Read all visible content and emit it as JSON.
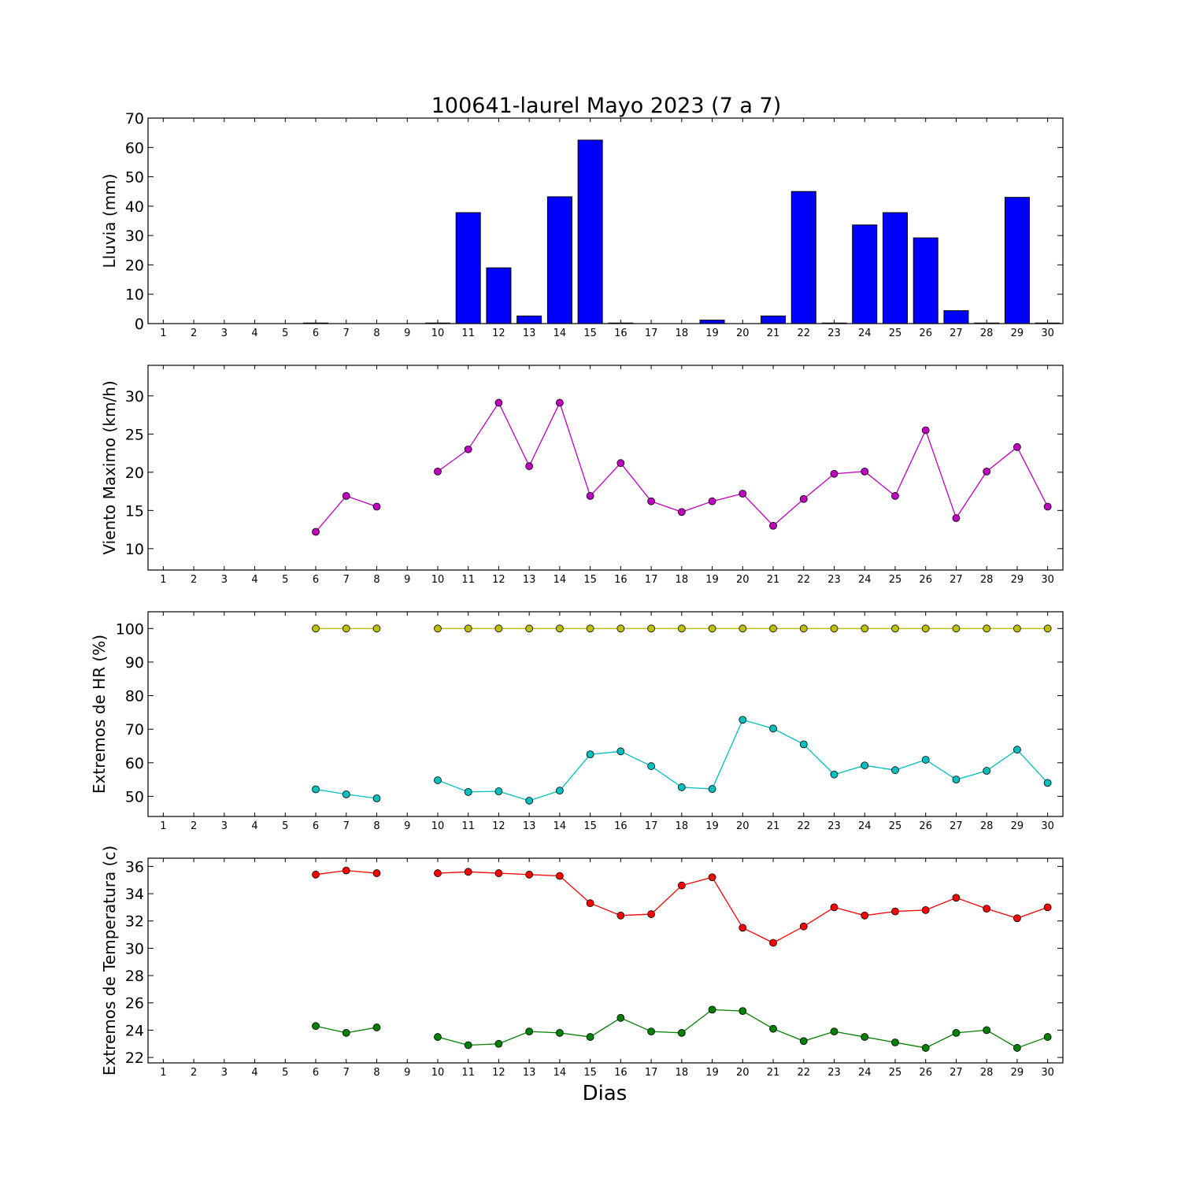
{
  "title": "100641-laurel Mayo 2023  (7 a 7)",
  "xlabel": "Dias",
  "colors": {
    "lluvia": "#0000ff",
    "viento": "#bf00bf",
    "hr_max": "#bfbf00",
    "hr_min": "#00bfbf",
    "temp_max": "#ff0000",
    "temp_min": "#007f00"
  },
  "chart_data": [
    {
      "type": "bar",
      "ylabel": "Lluvia (mm)",
      "ylim": [
        0,
        70
      ],
      "yticks": [
        0,
        10,
        20,
        30,
        40,
        50,
        60,
        70
      ],
      "categories": [
        1,
        2,
        3,
        4,
        5,
        6,
        7,
        8,
        9,
        10,
        11,
        12,
        13,
        14,
        15,
        16,
        17,
        18,
        19,
        20,
        21,
        22,
        23,
        24,
        25,
        26,
        27,
        28,
        29,
        30
      ],
      "values": [
        0,
        0,
        0,
        0,
        0,
        0.2,
        0,
        0,
        0,
        0.2,
        37.8,
        19,
        2.6,
        43.2,
        62.5,
        0.2,
        0,
        0,
        1.2,
        0,
        2.6,
        45,
        0.2,
        33.6,
        37.8,
        29.2,
        4.4,
        0.2,
        43,
        0.2
      ]
    },
    {
      "type": "line",
      "ylabel": "Viento Maximo (km/h)",
      "ylim": [
        7.2,
        34
      ],
      "yticks": [
        10,
        15,
        20,
        25,
        30
      ],
      "categories": [
        1,
        2,
        3,
        4,
        5,
        6,
        7,
        8,
        9,
        10,
        11,
        12,
        13,
        14,
        15,
        16,
        17,
        18,
        19,
        20,
        21,
        22,
        23,
        24,
        25,
        26,
        27,
        28,
        29,
        30
      ],
      "series": [
        {
          "values": [
            null,
            null,
            null,
            null,
            null,
            12.2,
            16.9,
            15.5,
            null,
            20.1,
            23,
            29.1,
            20.8,
            29.1,
            16.9,
            21.2,
            16.2,
            14.8,
            16.2,
            17.2,
            13,
            16.5,
            19.8,
            20.1,
            16.9,
            25.5,
            14,
            20.1,
            23.3,
            15.5
          ]
        }
      ]
    },
    {
      "type": "line",
      "ylabel": "Extremos de HR (%)",
      "ylim": [
        44,
        105
      ],
      "yticks": [
        50,
        60,
        70,
        80,
        90,
        100
      ],
      "categories": [
        1,
        2,
        3,
        4,
        5,
        6,
        7,
        8,
        9,
        10,
        11,
        12,
        13,
        14,
        15,
        16,
        17,
        18,
        19,
        20,
        21,
        22,
        23,
        24,
        25,
        26,
        27,
        28,
        29,
        30
      ],
      "series": [
        {
          "values": [
            null,
            null,
            null,
            null,
            null,
            100,
            100,
            100,
            null,
            100,
            100,
            100,
            100,
            100,
            100,
            100,
            100,
            100,
            100,
            100,
            100,
            100,
            100,
            100,
            100,
            100,
            100,
            100,
            100,
            100
          ]
        },
        {
          "values": [
            null,
            null,
            null,
            null,
            null,
            52.1,
            50.6,
            49.4,
            null,
            54.8,
            51.3,
            51.5,
            48.7,
            51.7,
            62.5,
            63.4,
            59,
            52.7,
            52.2,
            72.8,
            70.2,
            65.5,
            56.5,
            59.2,
            57.8,
            60.9,
            55,
            57.6,
            63.9,
            54
          ]
        }
      ]
    },
    {
      "type": "line",
      "ylabel": "Extremos de Temperatura (c)",
      "ylim": [
        21.6,
        36.6
      ],
      "yticks": [
        22,
        24,
        26,
        28,
        30,
        32,
        34,
        36
      ],
      "categories": [
        1,
        2,
        3,
        4,
        5,
        6,
        7,
        8,
        9,
        10,
        11,
        12,
        13,
        14,
        15,
        16,
        17,
        18,
        19,
        20,
        21,
        22,
        23,
        24,
        25,
        26,
        27,
        28,
        29,
        30
      ],
      "series": [
        {
          "values": [
            null,
            null,
            null,
            null,
            null,
            35.4,
            35.7,
            35.5,
            null,
            35.5,
            35.6,
            35.5,
            35.4,
            35.3,
            33.3,
            32.4,
            32.5,
            34.6,
            35.2,
            31.5,
            30.4,
            31.6,
            33,
            32.4,
            32.7,
            32.8,
            33.7,
            32.9,
            32.2,
            33
          ]
        },
        {
          "values": [
            null,
            null,
            null,
            null,
            null,
            24.3,
            23.8,
            24.2,
            null,
            23.5,
            22.9,
            23,
            23.9,
            23.8,
            23.5,
            24.9,
            23.9,
            23.8,
            25.5,
            25.4,
            24.1,
            23.2,
            23.9,
            23.5,
            23.1,
            22.7,
            23.8,
            24,
            22.7,
            23.5
          ]
        }
      ]
    }
  ]
}
